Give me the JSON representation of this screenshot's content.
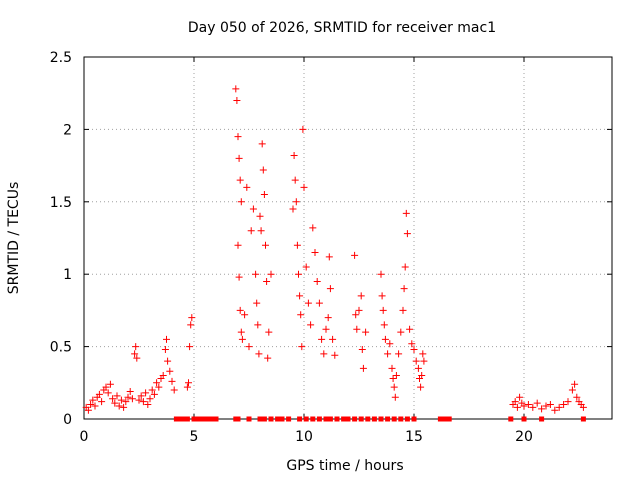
{
  "chart_data": {
    "type": "scatter",
    "title": "Day 050 of 2026, SRMTID for receiver mac1",
    "xlabel": "GPS time / hours",
    "ylabel": "SRMTID / TECUs",
    "xlim": [
      0,
      24
    ],
    "ylim": [
      0,
      2.5
    ],
    "xticks": [
      0,
      5,
      10,
      15,
      20
    ],
    "yticks": [
      0,
      0.5,
      1,
      1.5,
      2,
      2.5
    ],
    "ytick_labels": [
      "0",
      "0.5",
      "1",
      "1.5",
      "2",
      "2.5"
    ],
    "grid": true,
    "series": [
      {
        "name": "SRMTID",
        "marker": "plus",
        "color": "#ff0000",
        "points": [
          [
            0.1,
            0.08
          ],
          [
            0.2,
            0.06
          ],
          [
            0.3,
            0.1
          ],
          [
            0.4,
            0.13
          ],
          [
            0.5,
            0.09
          ],
          [
            0.6,
            0.15
          ],
          [
            0.7,
            0.17
          ],
          [
            0.8,
            0.12
          ],
          [
            0.9,
            0.2
          ],
          [
            1.0,
            0.22
          ],
          [
            1.1,
            0.18
          ],
          [
            1.2,
            0.24
          ],
          [
            1.3,
            0.14
          ],
          [
            1.4,
            0.11
          ],
          [
            1.5,
            0.16
          ],
          [
            1.6,
            0.09
          ],
          [
            1.7,
            0.13
          ],
          [
            1.8,
            0.08
          ],
          [
            1.9,
            0.12
          ],
          [
            2.0,
            0.15
          ],
          [
            2.1,
            0.19
          ],
          [
            2.2,
            0.14
          ],
          [
            2.3,
            0.45
          ],
          [
            2.35,
            0.5
          ],
          [
            2.4,
            0.42
          ],
          [
            2.5,
            0.13
          ],
          [
            2.6,
            0.16
          ],
          [
            2.7,
            0.12
          ],
          [
            2.8,
            0.18
          ],
          [
            2.9,
            0.1
          ],
          [
            3.0,
            0.14
          ],
          [
            3.1,
            0.2
          ],
          [
            3.2,
            0.17
          ],
          [
            3.3,
            0.25
          ],
          [
            3.4,
            0.22
          ],
          [
            3.5,
            0.28
          ],
          [
            3.6,
            0.3
          ],
          [
            3.7,
            0.48
          ],
          [
            3.75,
            0.55
          ],
          [
            3.8,
            0.4
          ],
          [
            3.9,
            0.33
          ],
          [
            4.0,
            0.26
          ],
          [
            4.1,
            0.2
          ],
          [
            4.7,
            0.22
          ],
          [
            4.75,
            0.25
          ],
          [
            4.8,
            0.5
          ],
          [
            4.85,
            0.65
          ],
          [
            4.9,
            0.7
          ],
          [
            6.9,
            2.28
          ],
          [
            6.95,
            2.2
          ],
          [
            7.0,
            1.95
          ],
          [
            7.05,
            1.8
          ],
          [
            7.1,
            1.65
          ],
          [
            7.15,
            1.5
          ],
          [
            7.0,
            1.2
          ],
          [
            7.05,
            0.98
          ],
          [
            7.1,
            0.75
          ],
          [
            7.15,
            0.6
          ],
          [
            7.2,
            0.55
          ],
          [
            7.3,
            0.72
          ],
          [
            7.4,
            1.6
          ],
          [
            7.5,
            0.5
          ],
          [
            7.6,
            1.3
          ],
          [
            7.7,
            1.45
          ],
          [
            7.8,
            1.0
          ],
          [
            7.85,
            0.8
          ],
          [
            7.9,
            0.65
          ],
          [
            7.95,
            0.45
          ],
          [
            8.0,
            1.4
          ],
          [
            8.05,
            1.3
          ],
          [
            8.1,
            1.9
          ],
          [
            8.15,
            1.72
          ],
          [
            8.2,
            1.55
          ],
          [
            8.25,
            1.2
          ],
          [
            8.3,
            0.95
          ],
          [
            8.35,
            0.42
          ],
          [
            8.4,
            0.6
          ],
          [
            8.5,
            1.0
          ],
          [
            9.5,
            1.45
          ],
          [
            9.55,
            1.82
          ],
          [
            9.6,
            1.65
          ],
          [
            9.65,
            1.5
          ],
          [
            9.7,
            1.2
          ],
          [
            9.75,
            1.0
          ],
          [
            9.8,
            0.85
          ],
          [
            9.85,
            0.72
          ],
          [
            9.9,
            0.5
          ],
          [
            9.95,
            2.0
          ],
          [
            10.0,
            1.6
          ],
          [
            10.1,
            1.05
          ],
          [
            10.2,
            0.8
          ],
          [
            10.3,
            0.65
          ],
          [
            10.4,
            1.32
          ],
          [
            10.5,
            1.15
          ],
          [
            10.6,
            0.95
          ],
          [
            10.7,
            0.8
          ],
          [
            10.8,
            0.55
          ],
          [
            10.9,
            0.45
          ],
          [
            11.0,
            0.62
          ],
          [
            11.1,
            0.7
          ],
          [
            11.15,
            1.12
          ],
          [
            11.2,
            0.9
          ],
          [
            11.3,
            0.55
          ],
          [
            11.4,
            0.44
          ],
          [
            12.3,
            1.13
          ],
          [
            12.35,
            0.72
          ],
          [
            12.4,
            0.62
          ],
          [
            12.5,
            0.75
          ],
          [
            12.6,
            0.85
          ],
          [
            12.65,
            0.48
          ],
          [
            12.7,
            0.35
          ],
          [
            12.8,
            0.6
          ],
          [
            13.5,
            1.0
          ],
          [
            13.55,
            0.85
          ],
          [
            13.6,
            0.75
          ],
          [
            13.65,
            0.65
          ],
          [
            13.7,
            0.55
          ],
          [
            13.8,
            0.45
          ],
          [
            13.9,
            0.52
          ],
          [
            14.0,
            0.35
          ],
          [
            14.05,
            0.28
          ],
          [
            14.1,
            0.22
          ],
          [
            14.15,
            0.15
          ],
          [
            14.2,
            0.3
          ],
          [
            14.3,
            0.45
          ],
          [
            14.4,
            0.6
          ],
          [
            14.5,
            0.75
          ],
          [
            14.55,
            0.9
          ],
          [
            14.6,
            1.05
          ],
          [
            14.65,
            1.42
          ],
          [
            14.7,
            1.28
          ],
          [
            14.8,
            0.62
          ],
          [
            14.9,
            0.52
          ],
          [
            15.0,
            0.48
          ],
          [
            15.1,
            0.4
          ],
          [
            15.2,
            0.35
          ],
          [
            15.25,
            0.28
          ],
          [
            15.3,
            0.22
          ],
          [
            15.35,
            0.3
          ],
          [
            15.4,
            0.45
          ],
          [
            15.45,
            0.4
          ],
          [
            19.5,
            0.1
          ],
          [
            19.6,
            0.12
          ],
          [
            19.7,
            0.08
          ],
          [
            19.8,
            0.15
          ],
          [
            19.9,
            0.11
          ],
          [
            20.0,
            0.09
          ],
          [
            20.2,
            0.1
          ],
          [
            20.4,
            0.08
          ],
          [
            20.6,
            0.11
          ],
          [
            20.8,
            0.07
          ],
          [
            21.0,
            0.09
          ],
          [
            21.2,
            0.1
          ],
          [
            21.4,
            0.06
          ],
          [
            21.6,
            0.08
          ],
          [
            21.8,
            0.1
          ],
          [
            22.0,
            0.12
          ],
          [
            22.2,
            0.2
          ],
          [
            22.3,
            0.24
          ],
          [
            22.4,
            0.15
          ],
          [
            22.5,
            0.12
          ],
          [
            22.6,
            0.1
          ],
          [
            22.7,
            0.08
          ]
        ]
      },
      {
        "name": "SRMTID zero",
        "marker": "square",
        "color": "#ff0000",
        "points": [
          [
            4.2,
            0
          ],
          [
            4.3,
            0
          ],
          [
            4.4,
            0
          ],
          [
            4.5,
            0
          ],
          [
            4.6,
            0
          ],
          [
            4.7,
            0
          ],
          [
            5.0,
            0
          ],
          [
            5.2,
            0
          ],
          [
            5.4,
            0
          ],
          [
            5.6,
            0
          ],
          [
            5.8,
            0
          ],
          [
            6.0,
            0
          ],
          [
            6.9,
            0
          ],
          [
            7.0,
            0
          ],
          [
            7.5,
            0
          ],
          [
            8.0,
            0
          ],
          [
            8.2,
            0
          ],
          [
            8.5,
            0
          ],
          [
            8.8,
            0
          ],
          [
            9.0,
            0
          ],
          [
            9.3,
            0
          ],
          [
            9.8,
            0
          ],
          [
            10.1,
            0
          ],
          [
            10.4,
            0
          ],
          [
            10.7,
            0
          ],
          [
            11.0,
            0
          ],
          [
            11.2,
            0
          ],
          [
            11.5,
            0
          ],
          [
            11.8,
            0
          ],
          [
            12.0,
            0
          ],
          [
            12.3,
            0
          ],
          [
            12.6,
            0
          ],
          [
            12.9,
            0
          ],
          [
            13.2,
            0
          ],
          [
            13.5,
            0
          ],
          [
            13.8,
            0
          ],
          [
            14.1,
            0
          ],
          [
            14.4,
            0
          ],
          [
            14.7,
            0
          ],
          [
            15.0,
            0
          ],
          [
            16.2,
            0
          ],
          [
            16.4,
            0
          ],
          [
            16.6,
            0
          ],
          [
            19.4,
            0
          ],
          [
            20.0,
            0
          ],
          [
            20.8,
            0
          ],
          [
            22.7,
            0
          ]
        ]
      }
    ]
  }
}
